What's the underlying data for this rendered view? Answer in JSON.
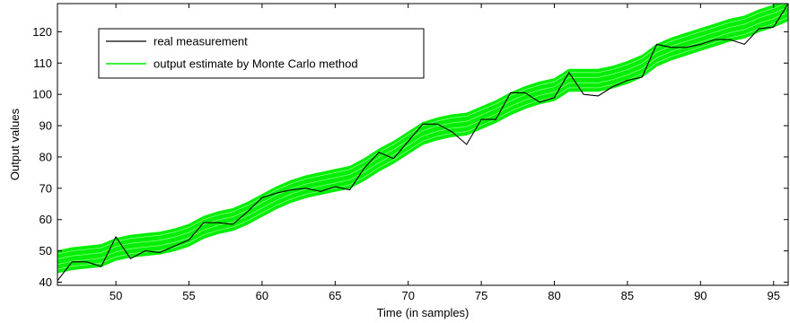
{
  "chart_data": {
    "type": "line",
    "title": "",
    "xlabel": "Time (in samples)",
    "ylabel": "Output values",
    "xlim": [
      46,
      96
    ],
    "ylim": [
      39,
      129
    ],
    "xticks": [
      50,
      55,
      60,
      65,
      70,
      75,
      80,
      85,
      90,
      95
    ],
    "yticks": [
      40,
      50,
      60,
      70,
      80,
      90,
      100,
      110,
      120
    ],
    "grid": false,
    "legend_position": "top-left",
    "colors": {
      "measurement": "#000000",
      "estimate": "#00ee00",
      "estimate_inner": "#aaffaa"
    },
    "x": [
      46,
      47,
      48,
      49,
      50,
      51,
      52,
      53,
      54,
      55,
      56,
      57,
      58,
      59,
      60,
      61,
      62,
      63,
      64,
      65,
      66,
      67,
      68,
      69,
      70,
      71,
      72,
      73,
      74,
      75,
      76,
      77,
      78,
      79,
      80,
      81,
      82,
      83,
      84,
      85,
      86,
      87,
      88,
      89,
      90,
      91,
      92,
      93,
      94,
      95,
      96
    ],
    "series": [
      {
        "name": "real measurement",
        "values": [
          40.5,
          46.5,
          46.5,
          45.0,
          54.5,
          47.5,
          50.0,
          49.5,
          51.5,
          53.5,
          59.0,
          59.0,
          58.5,
          62.5,
          67.0,
          68.5,
          69.5,
          70.0,
          69.0,
          70.5,
          69.5,
          76.5,
          81.5,
          79.5,
          85.0,
          90.5,
          90.5,
          88.0,
          84.0,
          92.0,
          92.0,
          100.5,
          100.5,
          97.5,
          99.0,
          107.0,
          100.0,
          99.5,
          102.5,
          104.5,
          105.5,
          116.0,
          115.0,
          115.0,
          116.0,
          117.5,
          117.5,
          116.0,
          121.0,
          121.5,
          129.0
        ]
      },
      {
        "name": "output estimate by Monte Carlo method",
        "values": [
          46.5,
          47.5,
          48.0,
          48.5,
          50.5,
          51.5,
          52.0,
          52.5,
          53.5,
          55.0,
          57.5,
          59.0,
          60.0,
          62.0,
          64.5,
          67.0,
          69.0,
          70.5,
          71.5,
          72.5,
          73.5,
          76.0,
          79.0,
          81.5,
          84.5,
          87.5,
          89.0,
          90.0,
          90.5,
          92.5,
          94.5,
          97.0,
          99.0,
          100.5,
          101.5,
          104.5,
          104.5,
          104.5,
          105.5,
          107.0,
          109.0,
          112.5,
          114.5,
          116.0,
          117.5,
          119.0,
          120.5,
          121.5,
          123.5,
          125.0,
          127.0
        ],
        "band_half_width": 3.5
      }
    ]
  }
}
